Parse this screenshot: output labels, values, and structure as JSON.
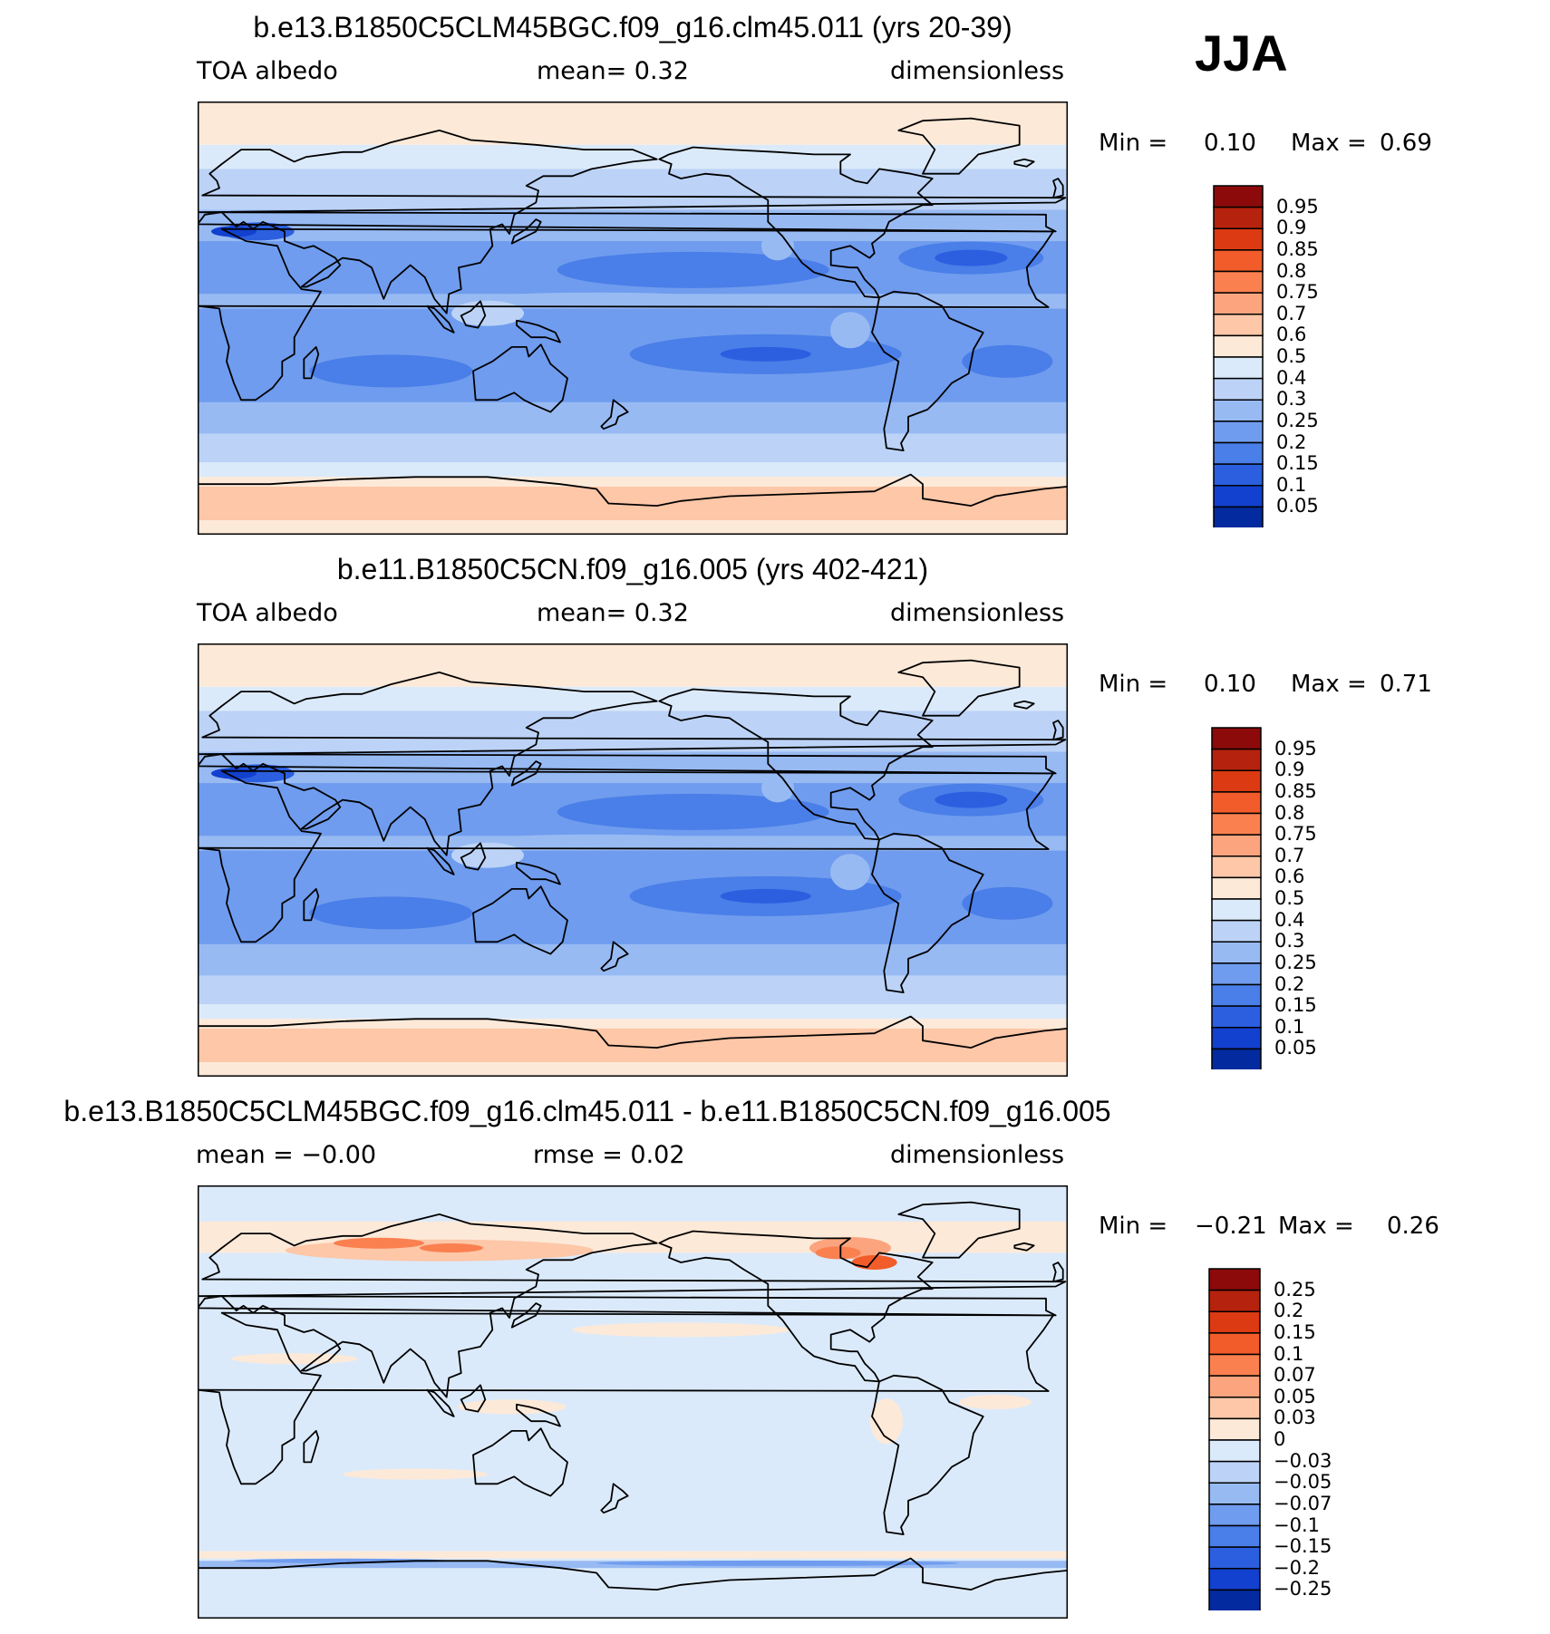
{
  "season": "JJA",
  "panels": [
    {
      "title": "b.e13.B1850C5CLM45BGC.f09_g16.clm45.011 (yrs 20-39)",
      "left_label": "TOA  albedo",
      "center_label": "mean=     0.32",
      "right_label": "dimensionless",
      "min_label": "Min  =",
      "min_value": "0.10",
      "max_label": "Max  =",
      "max_value": "0.69",
      "min": 0.1,
      "max": 0.69,
      "mean": 0.32,
      "colorbar": {
        "labels": [
          "0.95",
          "0.9",
          "0.85",
          "0.8",
          "0.75",
          "0.7",
          "0.6",
          "0.5",
          "0.4",
          "0.3",
          "0.25",
          "0.2",
          "0.15",
          "0.1",
          "0.05"
        ],
        "colors": [
          "#8c0a0a",
          "#b5220d",
          "#db3a12",
          "#f25c2a",
          "#fa8050",
          "#fca47e",
          "#fdc7a8",
          "#fde9d8",
          "#dbeafa",
          "#bcd3f7",
          "#98baf3",
          "#6f9cee",
          "#4a7ee8",
          "#2b5fe0",
          "#1240cf",
          "#032a9e"
        ]
      }
    },
    {
      "title": "b.e11.B1850C5CN.f09_g16.005 (yrs 402-421)",
      "left_label": "TOA  albedo",
      "center_label": "mean=     0.32",
      "right_label": "dimensionless",
      "min_label": "Min  =",
      "min_value": "0.10",
      "max_label": "Max  =",
      "max_value": "0.71",
      "min": 0.1,
      "max": 0.71,
      "mean": 0.32,
      "colorbar": {
        "labels": [
          "0.95",
          "0.9",
          "0.85",
          "0.8",
          "0.75",
          "0.7",
          "0.6",
          "0.5",
          "0.4",
          "0.3",
          "0.25",
          "0.2",
          "0.15",
          "0.1",
          "0.05"
        ],
        "colors": [
          "#8c0a0a",
          "#b5220d",
          "#db3a12",
          "#f25c2a",
          "#fa8050",
          "#fca47e",
          "#fdc7a8",
          "#fde9d8",
          "#dbeafa",
          "#bcd3f7",
          "#98baf3",
          "#6f9cee",
          "#4a7ee8",
          "#2b5fe0",
          "#1240cf",
          "#032a9e"
        ]
      }
    },
    {
      "title": "b.e13.B1850C5CLM45BGC.f09_g16.clm45.011 - b.e11.B1850C5CN.f09_g16.005",
      "left_label": "mean  =    −0.00",
      "center_label": "rmse  =     0.02",
      "right_label": "dimensionless",
      "min_label": "Min  =",
      "min_value": "−0.21",
      "max_label": "Max  =",
      "max_value": "0.26",
      "min": -0.21,
      "max": 0.26,
      "mean": 0.0,
      "rmse": 0.02,
      "colorbar": {
        "labels": [
          "0.25",
          "0.2",
          "0.15",
          "0.1",
          "0.07",
          "0.05",
          "0.03",
          "0",
          "−0.03",
          "−0.05",
          "−0.07",
          "−0.1",
          "−0.15",
          "−0.2",
          "−0.25"
        ],
        "colors": [
          "#8c0a0a",
          "#b5220d",
          "#db3a12",
          "#f25c2a",
          "#fa8050",
          "#fca47e",
          "#fdc7a8",
          "#fde9d8",
          "#dbeafa",
          "#bcd3f7",
          "#98baf3",
          "#6f9cee",
          "#4a7ee8",
          "#2b5fe0",
          "#1240cf",
          "#032a9e"
        ]
      }
    }
  ]
}
